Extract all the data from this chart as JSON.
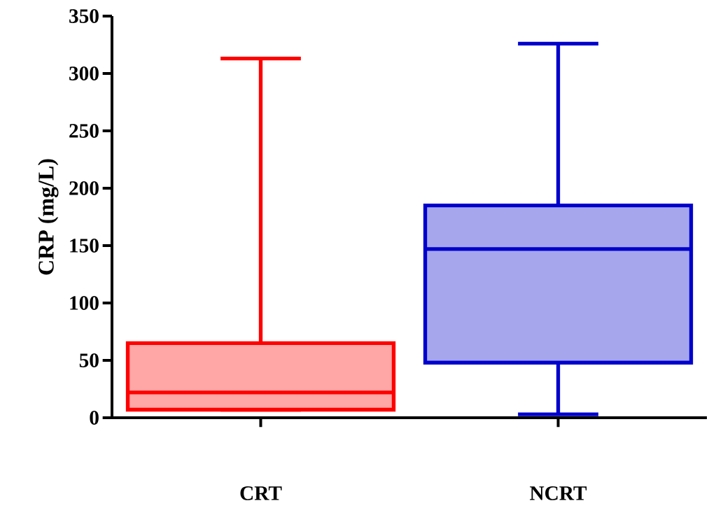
{
  "chart_data": {
    "type": "box",
    "ylabel": "CRP (mg/L)",
    "categories": [
      "CRT",
      "NCRT"
    ],
    "boxes": [
      {
        "low": 7,
        "q1": 7,
        "median": 22,
        "q3": 65,
        "high": 313
      },
      {
        "low": 3,
        "q1": 48,
        "median": 147,
        "q3": 185,
        "high": 326
      }
    ],
    "colors": [
      "#ff0000",
      "#0000cc"
    ],
    "ylim": [
      0,
      350
    ],
    "yticks": [
      0,
      50,
      100,
      150,
      200,
      250,
      300,
      350
    ],
    "grid": false
  }
}
